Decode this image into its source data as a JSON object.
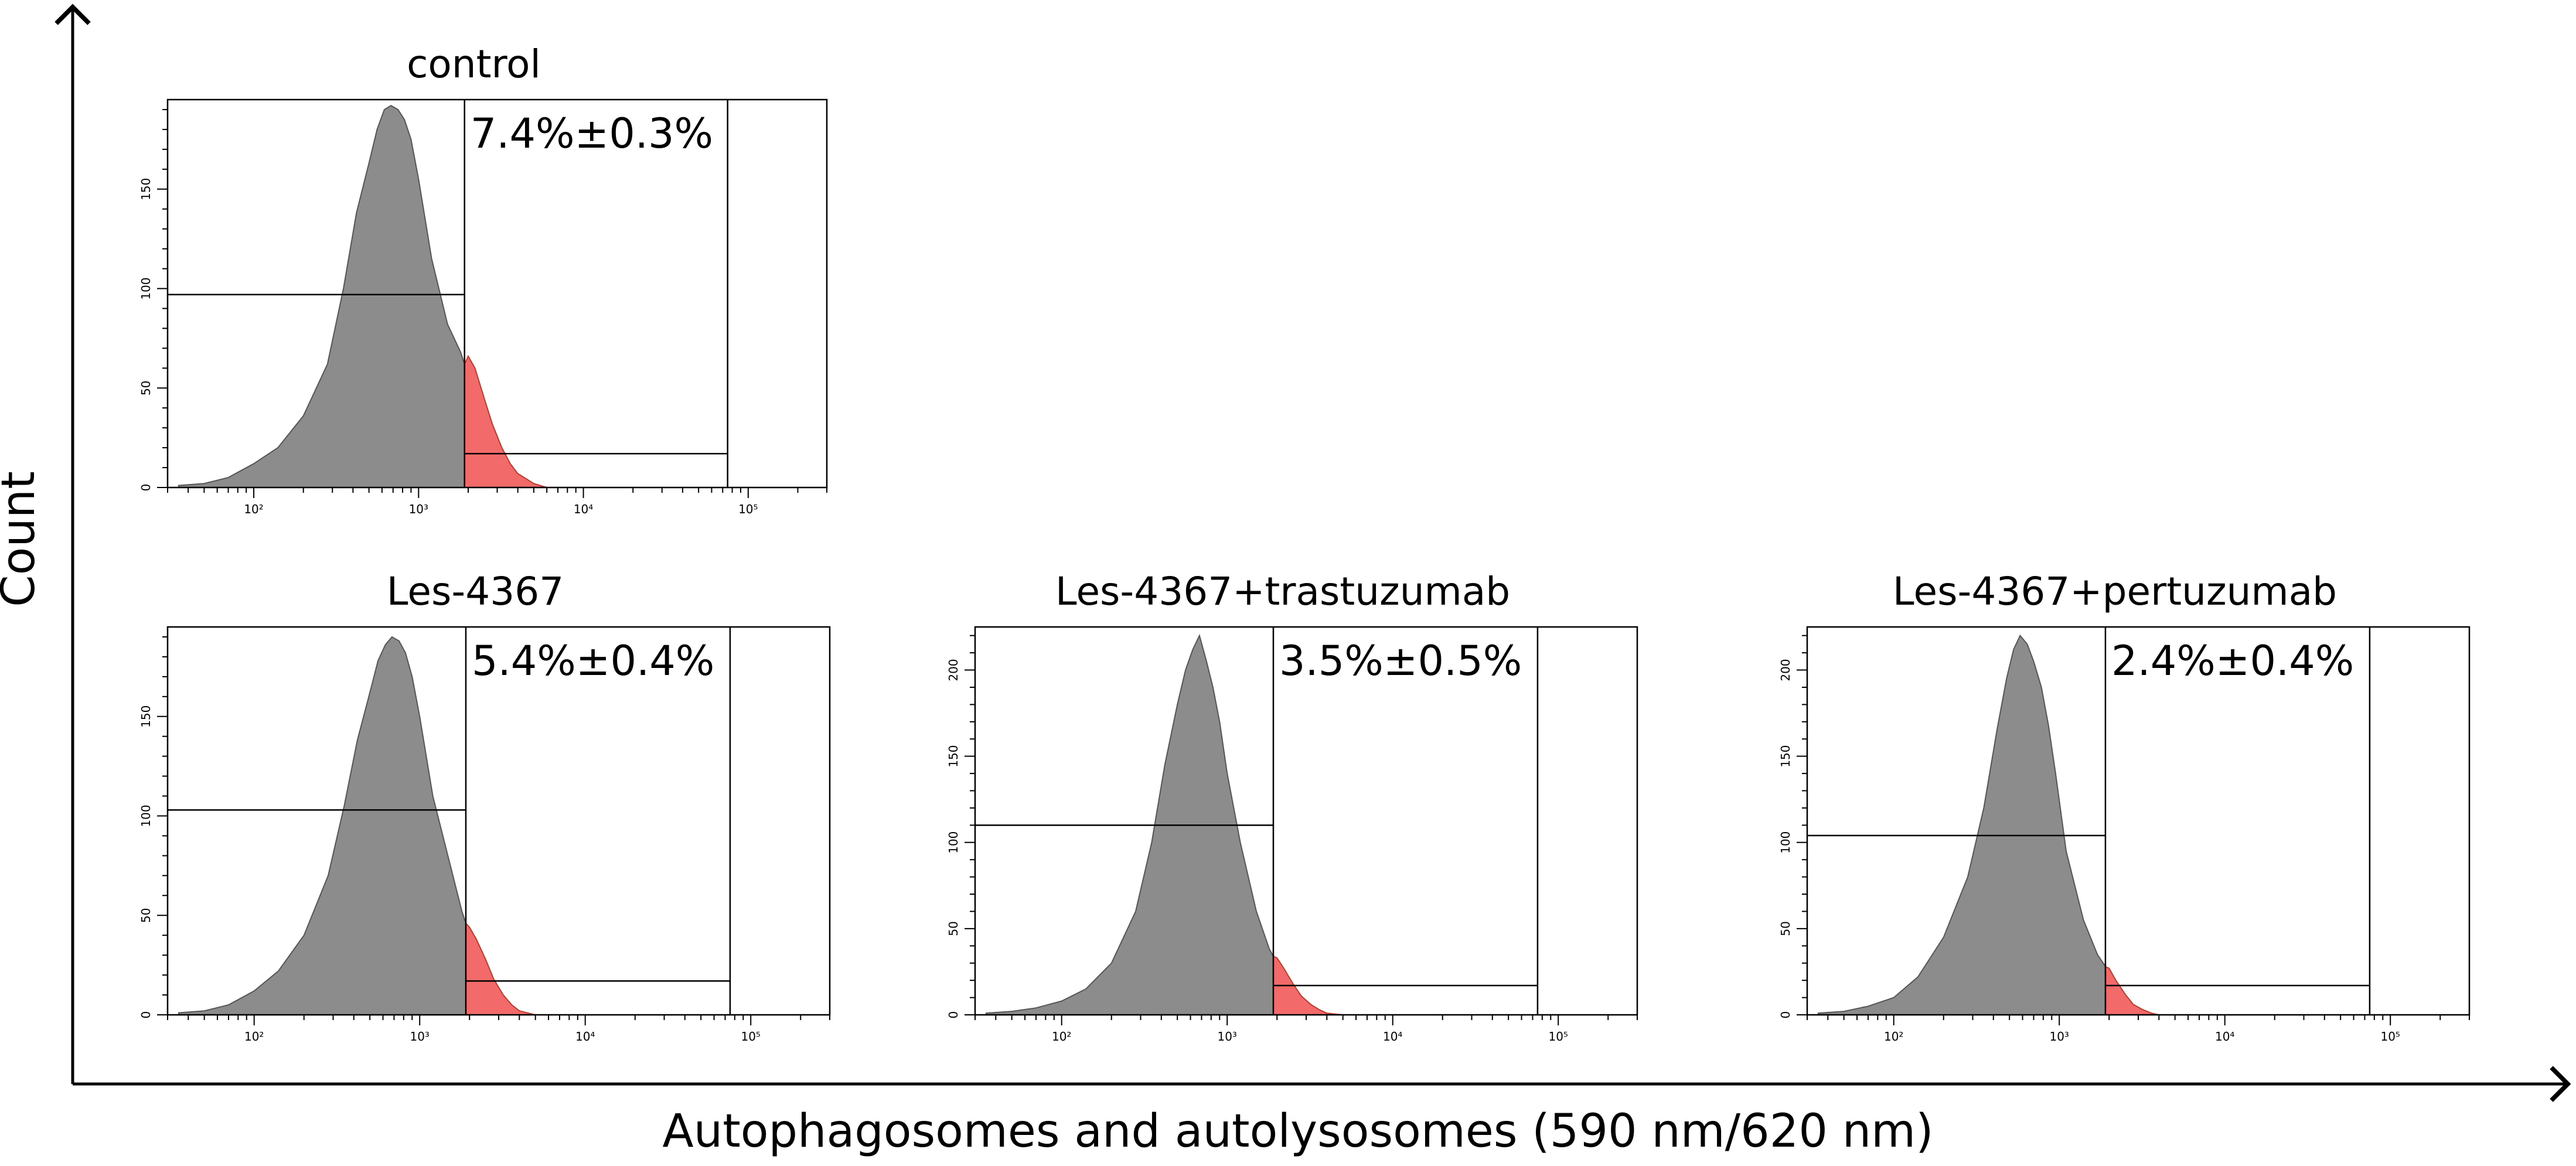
{
  "axes": {
    "ylabel": "Count",
    "xlabel": "Autophagosomes and autolysosomes (590 nm/620 nm)"
  },
  "colors": {
    "negative_fill": "#8c8c8c",
    "positive_fill": "#f26a6a",
    "line": "#000000"
  },
  "chart_data": [
    {
      "type": "area",
      "title": "control",
      "annotation": "7.4%±0.3%",
      "xscale": "log",
      "xlim": [
        30,
        300000
      ],
      "ylim": [
        0,
        195
      ],
      "x_tick_labels": [
        "10²",
        "10³",
        "10⁴",
        "10⁵"
      ],
      "y_ticks": [
        50,
        100,
        150
      ],
      "gate": {
        "threshold": 1900,
        "upper_bound": 75000,
        "negative_marker_y": 97,
        "positive_marker_y": 17
      },
      "series": [
        {
          "x": [
            35,
            50,
            70,
            100,
            140,
            200,
            280,
            350,
            420,
            500,
            560,
            620,
            680,
            750,
            820,
            900,
            1000,
            1200,
            1500,
            1800,
            1900
          ],
          "y": [
            1,
            2,
            5,
            12,
            20,
            36,
            62,
            100,
            138,
            163,
            180,
            190,
            192,
            190,
            185,
            175,
            155,
            115,
            82,
            68,
            62
          ]
        },
        {
          "x": [
            1900,
            2000,
            2200,
            2500,
            2800,
            3200,
            3600,
            4000,
            5000,
            6000
          ],
          "y": [
            62,
            66,
            60,
            45,
            32,
            20,
            12,
            7,
            2,
            0
          ]
        }
      ]
    },
    {
      "type": "area",
      "title": "Les-4367",
      "annotation": "5.4%±0.4%",
      "xscale": "log",
      "xlim": [
        30,
        300000
      ],
      "ylim": [
        0,
        195
      ],
      "x_tick_labels": [
        "10²",
        "10³",
        "10⁴",
        "10⁵"
      ],
      "y_ticks": [
        50,
        100,
        150
      ],
      "gate": {
        "threshold": 1900,
        "upper_bound": 75000,
        "negative_marker_y": 103,
        "positive_marker_y": 17
      },
      "series": [
        {
          "x": [
            35,
            50,
            70,
            100,
            140,
            200,
            280,
            350,
            420,
            500,
            560,
            620,
            680,
            750,
            820,
            900,
            1000,
            1200,
            1500,
            1800,
            1900
          ],
          "y": [
            1,
            2,
            5,
            12,
            22,
            40,
            70,
            105,
            138,
            162,
            178,
            186,
            190,
            188,
            182,
            170,
            150,
            110,
            78,
            52,
            46
          ]
        },
        {
          "x": [
            1900,
            2000,
            2200,
            2500,
            2800,
            3200,
            3600,
            4000,
            5000
          ],
          "y": [
            46,
            44,
            38,
            28,
            18,
            10,
            5,
            2,
            0
          ]
        }
      ]
    },
    {
      "type": "area",
      "title": "Les-4367+trastuzumab",
      "annotation": "3.5%±0.5%",
      "xscale": "log",
      "xlim": [
        30,
        300000
      ],
      "ylim": [
        0,
        225
      ],
      "x_tick_labels": [
        "10²",
        "10³",
        "10⁴",
        "10⁵"
      ],
      "y_ticks": [
        50,
        100,
        150,
        200
      ],
      "gate": {
        "threshold": 1900,
        "upper_bound": 75000,
        "negative_marker_y": 110,
        "positive_marker_y": 17
      },
      "series": [
        {
          "x": [
            35,
            50,
            70,
            100,
            140,
            200,
            280,
            350,
            420,
            500,
            560,
            620,
            680,
            750,
            820,
            900,
            1000,
            1200,
            1500,
            1800,
            1900
          ],
          "y": [
            1,
            2,
            4,
            8,
            15,
            30,
            60,
            100,
            145,
            180,
            200,
            212,
            220,
            205,
            190,
            170,
            140,
            100,
            60,
            38,
            34
          ]
        },
        {
          "x": [
            1900,
            2000,
            2200,
            2500,
            2800,
            3200,
            3600,
            4000,
            5000
          ],
          "y": [
            34,
            33,
            27,
            18,
            11,
            6,
            3,
            1,
            0
          ]
        }
      ]
    },
    {
      "type": "area",
      "title": "Les-4367+pertuzumab",
      "annotation": "2.4%±0.4%",
      "xscale": "log",
      "xlim": [
        30,
        300000
      ],
      "ylim": [
        0,
        225
      ],
      "x_tick_labels": [
        "10²",
        "10³",
        "10⁴",
        "10⁵"
      ],
      "y_ticks": [
        50,
        100,
        150,
        200
      ],
      "gate": {
        "threshold": 1900,
        "upper_bound": 75000,
        "negative_marker_y": 104,
        "positive_marker_y": 17
      },
      "series": [
        {
          "x": [
            35,
            50,
            70,
            100,
            140,
            200,
            280,
            350,
            420,
            480,
            530,
            580,
            640,
            700,
            780,
            860,
            950,
            1100,
            1400,
            1700,
            1900
          ],
          "y": [
            1,
            2,
            5,
            10,
            22,
            45,
            80,
            120,
            165,
            195,
            212,
            220,
            215,
            205,
            190,
            168,
            140,
            95,
            55,
            35,
            28
          ]
        },
        {
          "x": [
            1900,
            2000,
            2200,
            2500,
            2800,
            3200,
            3600,
            4000
          ],
          "y": [
            28,
            27,
            20,
            12,
            6,
            3,
            1,
            0
          ]
        }
      ]
    }
  ]
}
